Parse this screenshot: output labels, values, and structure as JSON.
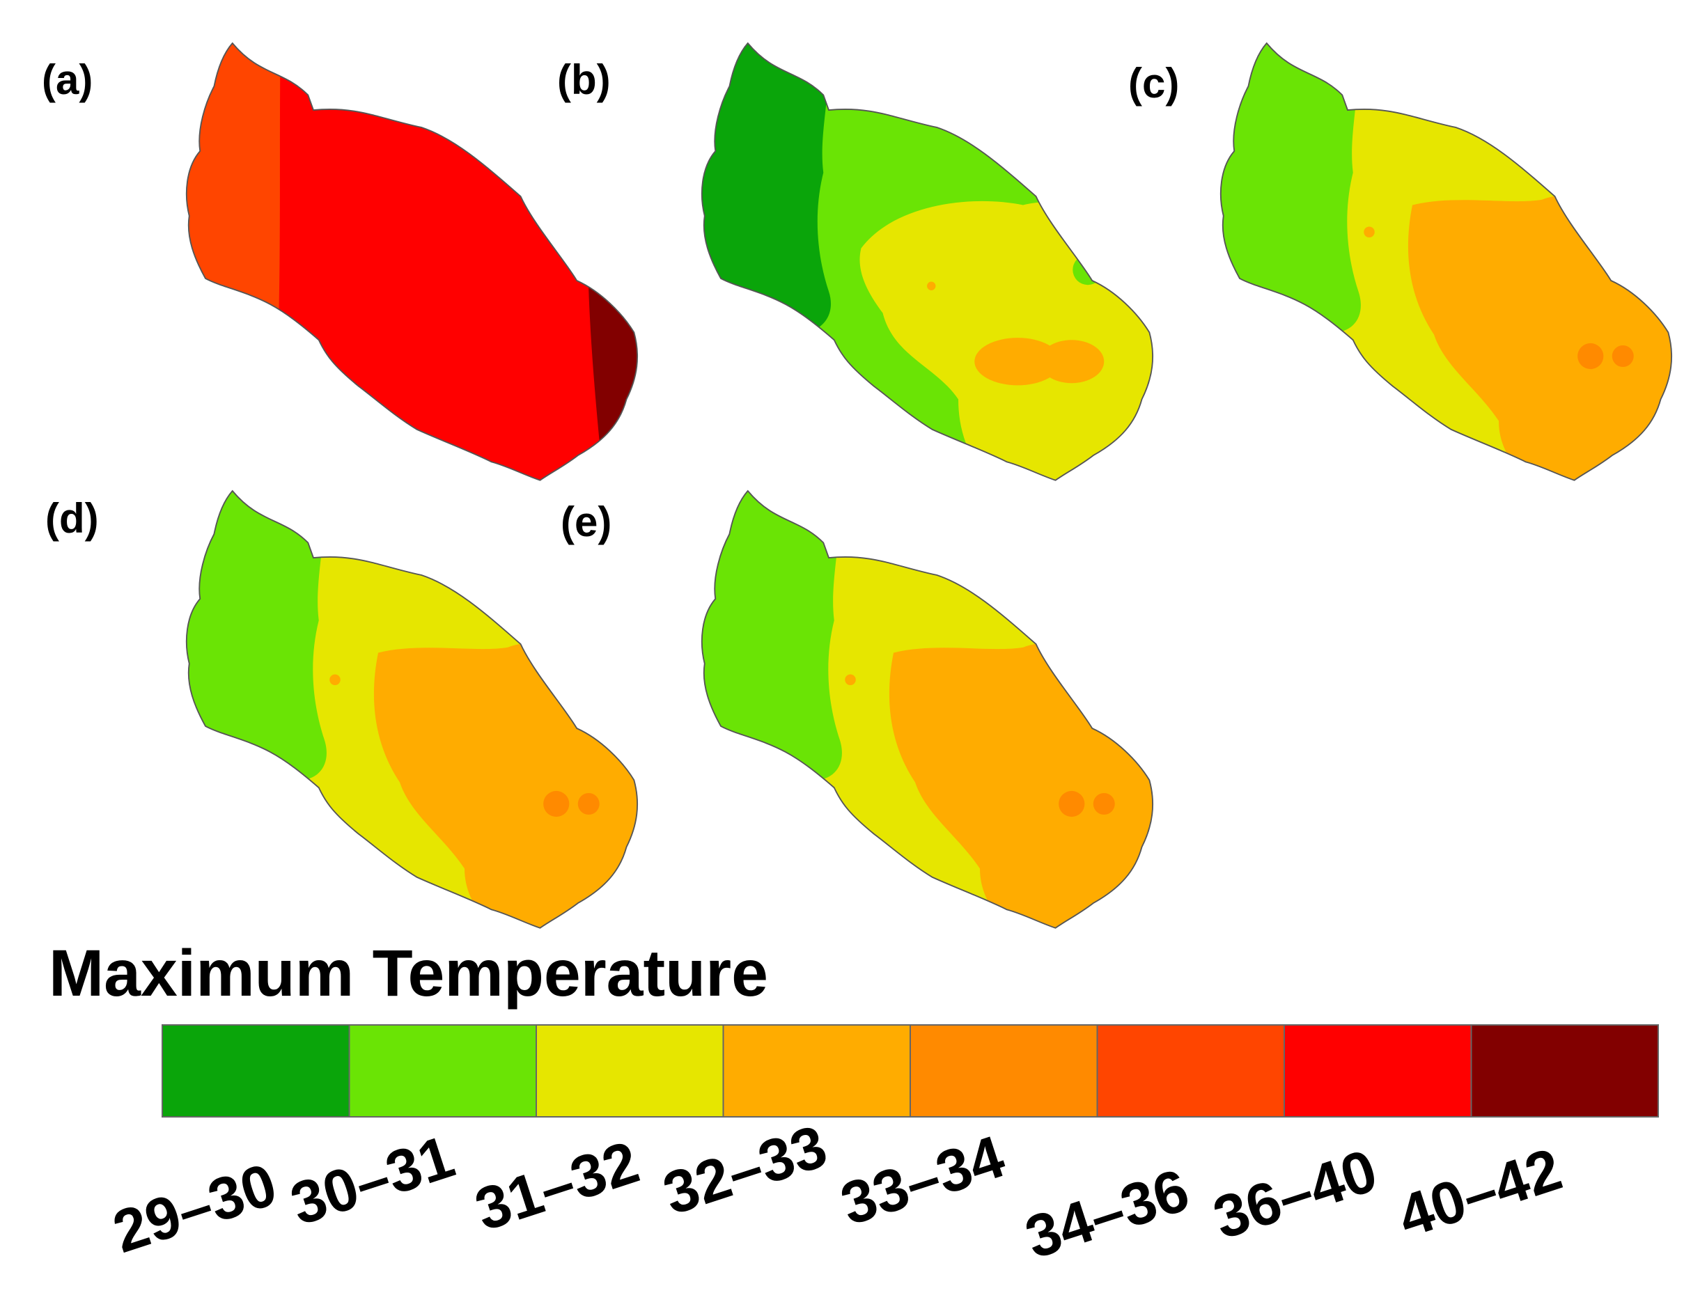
{
  "legend": {
    "title": "Maximum Temperature",
    "classes": [
      {
        "label": "29–30",
        "color": "#0aa50a"
      },
      {
        "label": "30–31",
        "color": "#6ae405"
      },
      {
        "label": "31–32",
        "color": "#e6e600"
      },
      {
        "label": "32–33",
        "color": "#ffac00"
      },
      {
        "label": "33–34",
        "color": "#ff8a00"
      },
      {
        "label": "34–36",
        "color": "#ff4500"
      },
      {
        "label": "36–40",
        "color": "#ff0000"
      },
      {
        "label": "40–42",
        "color": "#820000"
      }
    ]
  },
  "panels": [
    {
      "label": "(a)",
      "variant": "a"
    },
    {
      "label": "(b)",
      "variant": "b"
    },
    {
      "label": "(c)",
      "variant": "c"
    },
    {
      "label": "(d)",
      "variant": "d"
    },
    {
      "label": "(e)",
      "variant": "e"
    }
  ]
}
